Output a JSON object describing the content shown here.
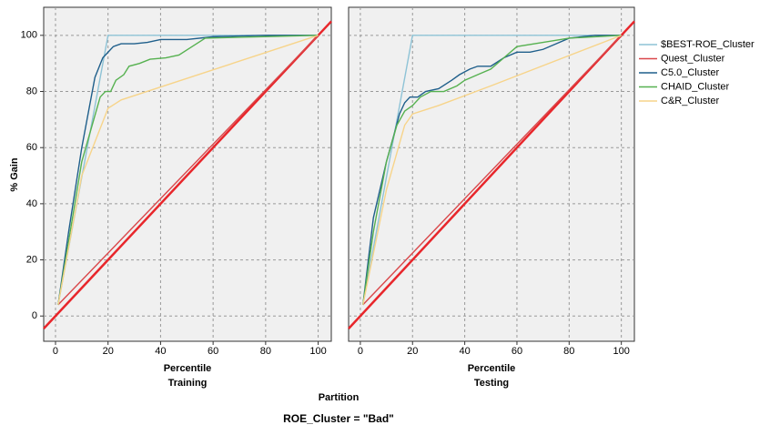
{
  "chart_data": [
    {
      "type": "line",
      "xlabel": "Percentile",
      "subtitle": "Training",
      "xlim": [
        -4.5,
        105
      ],
      "ylim": [
        -9,
        110
      ],
      "xticks": [
        0,
        20,
        40,
        60,
        80,
        100
      ],
      "yticks": [
        0,
        20,
        40,
        60,
        80,
        100
      ],
      "grid": true,
      "series": [
        {
          "name": "$BEST-ROE_Cluster",
          "color": "#8ec3d6",
          "x": [
            1,
            20,
            100
          ],
          "values": [
            4,
            100,
            100
          ]
        },
        {
          "name": "Quest_Cluster",
          "color": "#d9474a",
          "x": [
            1,
            100
          ],
          "values": [
            4,
            100
          ]
        },
        {
          "name": "C5.0_Cluster",
          "color": "#1f5f8b",
          "x": [
            1,
            5,
            10,
            15,
            18,
            20,
            22,
            25,
            30,
            35,
            40,
            50,
            60,
            80,
            100
          ],
          "values": [
            4,
            30,
            60,
            85,
            92,
            94,
            96,
            97,
            97,
            97.5,
            98.5,
            98.5,
            99.5,
            100,
            100
          ]
        },
        {
          "name": "CHAID_Cluster",
          "color": "#56b150",
          "x": [
            1,
            10,
            17,
            19,
            21,
            23,
            26,
            28,
            32,
            36,
            42,
            47,
            52,
            57,
            100
          ],
          "values": [
            4,
            55,
            78,
            80,
            80,
            84,
            86,
            89,
            90,
            91.5,
            92,
            93,
            96,
            99,
            100
          ]
        },
        {
          "name": "C&R_Cluster",
          "color": "#f7d48a",
          "x": [
            1,
            10,
            20,
            25,
            100
          ],
          "values": [
            4,
            50,
            74,
            77,
            100
          ]
        }
      ]
    },
    {
      "type": "line",
      "xlabel": "Percentile",
      "subtitle": "Testing",
      "xlim": [
        -4.5,
        105
      ],
      "ylim": [
        -9,
        110
      ],
      "xticks": [
        0,
        20,
        40,
        60,
        80,
        100
      ],
      "yticks": [
        0,
        20,
        40,
        60,
        80,
        100
      ],
      "grid": true,
      "series": [
        {
          "x": [
            1,
            20,
            100
          ],
          "values": [
            4,
            100,
            100
          ]
        },
        {
          "x": [
            1,
            100
          ],
          "values": [
            4,
            100
          ]
        },
        {
          "x": [
            1,
            5,
            10,
            13,
            15,
            17,
            19,
            22,
            25,
            30,
            35,
            38,
            42,
            45,
            50,
            55,
            60,
            65,
            70,
            75,
            80,
            90,
            100
          ],
          "values": [
            4,
            35,
            55,
            65,
            72,
            76,
            78,
            78,
            80,
            81,
            84,
            86,
            88,
            89,
            89,
            92,
            94,
            94,
            95,
            97,
            99,
            100,
            100
          ]
        },
        {
          "x": [
            1,
            5,
            10,
            14,
            17,
            20,
            23,
            27,
            32,
            37,
            40,
            45,
            50,
            55,
            60,
            70,
            80,
            100
          ],
          "values": [
            4,
            30,
            55,
            68,
            73,
            75,
            78,
            80,
            80,
            82,
            84,
            86,
            88,
            92,
            96,
            97.5,
            99,
            100
          ]
        },
        {
          "x": [
            1,
            10,
            17,
            20,
            30,
            50,
            100
          ],
          "values": [
            4,
            45,
            68,
            72,
            75,
            82,
            100
          ]
        }
      ]
    }
  ],
  "ylabel": "% Gain",
  "group_label": "Partition",
  "footer": "ROE_Cluster = \"Bad\""
}
